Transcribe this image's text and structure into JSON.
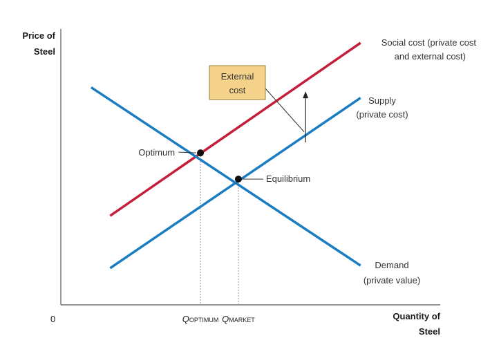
{
  "chart_data": {
    "type": "line",
    "title": "",
    "xlabel": [
      "Quantity of",
      "Steel"
    ],
    "ylabel": [
      "Price of",
      "Steel"
    ],
    "origin_label": "0",
    "xlim": [
      0,
      100
    ],
    "ylim": [
      0,
      100
    ],
    "grid": false,
    "legend": "none",
    "series": [
      {
        "key": "social",
        "label": [
          "Social cost (private cost",
          "and external cost)"
        ],
        "color": "#c41e3a",
        "points": [
          [
            13,
            34
          ],
          [
            79,
            100
          ]
        ]
      },
      {
        "key": "supply",
        "label": [
          "Supply",
          "(private cost)"
        ],
        "color": "#1a7cc1",
        "points": [
          [
            13,
            14
          ],
          [
            79,
            79
          ]
        ]
      },
      {
        "key": "demand",
        "label": [
          "Demand",
          "(private value)"
        ],
        "color": "#1a7cc1",
        "points": [
          [
            8,
            83
          ],
          [
            79,
            15
          ]
        ]
      }
    ],
    "points": [
      {
        "key": "optimum",
        "label": "Optimum",
        "x": 36.8,
        "y": 58
      },
      {
        "key": "equilibrium",
        "label": "Equilibrium",
        "x": 46.8,
        "y": 48
      }
    ],
    "x_ticks": [
      {
        "key": "q-optimum",
        "main": "Q",
        "sub": "OPTIMUM",
        "x": 36.8
      },
      {
        "key": "q-market",
        "main": "Q",
        "sub": "MARKET",
        "x": 46.8
      }
    ],
    "annotation": {
      "text": [
        "External",
        "cost"
      ],
      "box_fill": "#f6d38a",
      "box_stroke": "#9a7b3a",
      "arrow_x": 64.5,
      "arrow_from_y": 62,
      "arrow_to_y": 81.5
    }
  }
}
